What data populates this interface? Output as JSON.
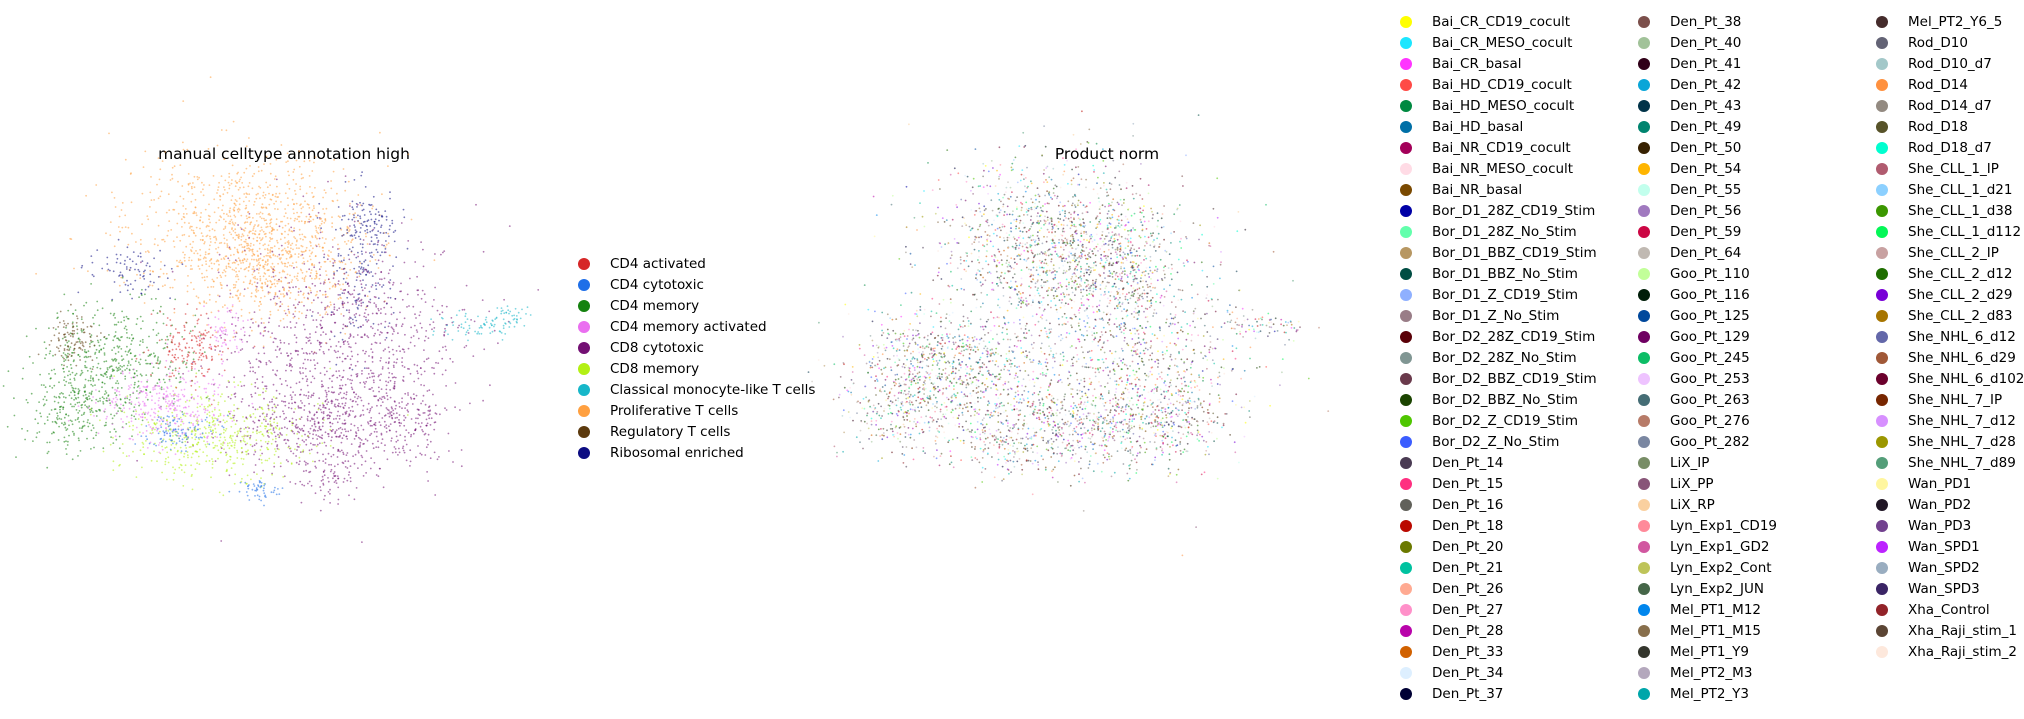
{
  "chart_data": [
    {
      "type": "scatter",
      "title": "manual celltype annotation high",
      "xlabel": "",
      "ylabel": "",
      "grid": false,
      "legend_position": "right",
      "series": [
        {
          "name": "CD4 activated",
          "color": "#d62728"
        },
        {
          "name": "CD4 cytotoxic",
          "color": "#1f6fe8"
        },
        {
          "name": "CD4 memory",
          "color": "#15820f"
        },
        {
          "name": "CD4 memory activated",
          "color": "#ea6ff0"
        },
        {
          "name": "CD8 cytotoxic",
          "color": "#730f73"
        },
        {
          "name": "CD8 memory",
          "color": "#b3f014"
        },
        {
          "name": "Classical monocyte-like T cells",
          "color": "#17b7c9"
        },
        {
          "name": "Proliferative T cells",
          "color": "#ffa040"
        },
        {
          "name": "Regulatory T cells",
          "color": "#5c3a0e"
        },
        {
          "name": "Ribosomal enriched",
          "color": "#0c0c82"
        }
      ]
    },
    {
      "type": "scatter",
      "title": "Product norm",
      "xlabel": "",
      "ylabel": "",
      "grid": false,
      "legend_position": "right",
      "series": [
        {
          "name": "Bai_CR_CD19_cocult",
          "color": "#ffff00"
        },
        {
          "name": "Bai_CR_MESO_cocult",
          "color": "#1ce6ff"
        },
        {
          "name": "Bai_CR_basal",
          "color": "#ff34ff"
        },
        {
          "name": "Bai_HD_CD19_cocult",
          "color": "#ff4a46"
        },
        {
          "name": "Bai_HD_MESO_cocult",
          "color": "#008941"
        },
        {
          "name": "Bai_HD_basal",
          "color": "#006fa6"
        },
        {
          "name": "Bai_NR_CD19_cocult",
          "color": "#a30059"
        },
        {
          "name": "Bai_NR_MESO_cocult",
          "color": "#ffdbe5"
        },
        {
          "name": "Bai_NR_basal",
          "color": "#7a4900"
        },
        {
          "name": "Bor_D1_28Z_CD19_Stim",
          "color": "#0000a6"
        },
        {
          "name": "Bor_D1_28Z_No_Stim",
          "color": "#63ffac"
        },
        {
          "name": "Bor_D1_BBZ_CD19_Stim",
          "color": "#b79762"
        },
        {
          "name": "Bor_D1_BBZ_No_Stim",
          "color": "#004d43"
        },
        {
          "name": "Bor_D1_Z_CD19_Stim",
          "color": "#8fb0ff"
        },
        {
          "name": "Bor_D1_Z_No_Stim",
          "color": "#997d87"
        },
        {
          "name": "Bor_D2_28Z_CD19_Stim",
          "color": "#5a0007"
        },
        {
          "name": "Bor_D2_28Z_No_Stim",
          "color": "#809693"
        },
        {
          "name": "Bor_D2_BBZ_CD19_Stim",
          "color": "#6a3a4c"
        },
        {
          "name": "Bor_D2_BBZ_No_Stim",
          "color": "#1b4400"
        },
        {
          "name": "Bor_D2_Z_CD19_Stim",
          "color": "#4fc601"
        },
        {
          "name": "Bor_D2_Z_No_Stim",
          "color": "#3b5dff"
        },
        {
          "name": "Den_Pt_14",
          "color": "#4a3b53"
        },
        {
          "name": "Den_Pt_15",
          "color": "#ff2f80"
        },
        {
          "name": "Den_Pt_16",
          "color": "#61615a"
        },
        {
          "name": "Den_Pt_18",
          "color": "#ba0900"
        },
        {
          "name": "Den_Pt_20",
          "color": "#6b7900"
        },
        {
          "name": "Den_Pt_21",
          "color": "#00c2a0"
        },
        {
          "name": "Den_Pt_26",
          "color": "#ffaa92"
        },
        {
          "name": "Den_Pt_27",
          "color": "#ff90c9"
        },
        {
          "name": "Den_Pt_28",
          "color": "#b903aa"
        },
        {
          "name": "Den_Pt_33",
          "color": "#d16100"
        },
        {
          "name": "Den_Pt_34",
          "color": "#ddefff"
        },
        {
          "name": "Den_Pt_37",
          "color": "#000035"
        },
        {
          "name": "Den_Pt_38",
          "color": "#7b4f4b"
        },
        {
          "name": "Den_Pt_40",
          "color": "#a1c299"
        },
        {
          "name": "Den_Pt_41",
          "color": "#300018"
        },
        {
          "name": "Den_Pt_42",
          "color": "#0aa6d8"
        },
        {
          "name": "Den_Pt_43",
          "color": "#013349"
        },
        {
          "name": "Den_Pt_49",
          "color": "#00846f"
        },
        {
          "name": "Den_Pt_50",
          "color": "#372101"
        },
        {
          "name": "Den_Pt_54",
          "color": "#ffb500"
        },
        {
          "name": "Den_Pt_55",
          "color": "#c2ffed"
        },
        {
          "name": "Den_Pt_56",
          "color": "#a079bf"
        },
        {
          "name": "Den_Pt_59",
          "color": "#cc0744"
        },
        {
          "name": "Den_Pt_64",
          "color": "#c0b9b2"
        },
        {
          "name": "Goo_Pt_110",
          "color": "#c2ff99"
        },
        {
          "name": "Goo_Pt_116",
          "color": "#001e09"
        },
        {
          "name": "Goo_Pt_125",
          "color": "#00489c"
        },
        {
          "name": "Goo_Pt_129",
          "color": "#6f0062"
        },
        {
          "name": "Goo_Pt_245",
          "color": "#0cbd66"
        },
        {
          "name": "Goo_Pt_253",
          "color": "#eec3ff"
        },
        {
          "name": "Goo_Pt_263",
          "color": "#456d75"
        },
        {
          "name": "Goo_Pt_276",
          "color": "#b77b68"
        },
        {
          "name": "Goo_Pt_282",
          "color": "#7a87a1"
        },
        {
          "name": "LiX_IP",
          "color": "#788d66"
        },
        {
          "name": "LiX_PP",
          "color": "#885578"
        },
        {
          "name": "LiX_RP",
          "color": "#fad09f"
        },
        {
          "name": "Lyn_Exp1_CD19",
          "color": "#ff8a9a"
        },
        {
          "name": "Lyn_Exp1_GD2",
          "color": "#d157a0"
        },
        {
          "name": "Lyn_Exp2_Cont",
          "color": "#bec459"
        },
        {
          "name": "Lyn_Exp2_JUN",
          "color": "#456648"
        },
        {
          "name": "Mel_PT1_M12",
          "color": "#0086ed"
        },
        {
          "name": "Mel_PT1_M15",
          "color": "#886f4c"
        },
        {
          "name": "Mel_PT1_Y9",
          "color": "#34362d"
        },
        {
          "name": "Mel_PT2_M3",
          "color": "#b4a8bd"
        },
        {
          "name": "Mel_PT2_Y3",
          "color": "#00a6aa"
        },
        {
          "name": "Mel_PT2_Y6_5",
          "color": "#452c2c"
        },
        {
          "name": "Rod_D10",
          "color": "#636375"
        },
        {
          "name": "Rod_D10_d7",
          "color": "#a3c8c9"
        },
        {
          "name": "Rod_D14",
          "color": "#ff913f"
        },
        {
          "name": "Rod_D14_d7",
          "color": "#938a81"
        },
        {
          "name": "Rod_D18",
          "color": "#575329"
        },
        {
          "name": "Rod_D18_d7",
          "color": "#00fecf"
        },
        {
          "name": "She_CLL_1_IP",
          "color": "#b05b6f"
        },
        {
          "name": "She_CLL_1_d21",
          "color": "#8cd0ff"
        },
        {
          "name": "She_CLL_1_d38",
          "color": "#3b9700"
        },
        {
          "name": "She_CLL_1_d112",
          "color": "#04f757"
        },
        {
          "name": "She_CLL_2_IP",
          "color": "#c8a1a1"
        },
        {
          "name": "She_CLL_2_d12",
          "color": "#1e6e00"
        },
        {
          "name": "She_CLL_2_d29",
          "color": "#7900d7"
        },
        {
          "name": "She_CLL_2_d83",
          "color": "#a77500"
        },
        {
          "name": "She_NHL_6_d12",
          "color": "#6367a9"
        },
        {
          "name": "She_NHL_6_d29",
          "color": "#a05837"
        },
        {
          "name": "She_NHL_6_d102",
          "color": "#6b002c"
        },
        {
          "name": "She_NHL_7_IP",
          "color": "#772600"
        },
        {
          "name": "She_NHL_7_d12",
          "color": "#d790ff"
        },
        {
          "name": "She_NHL_7_d28",
          "color": "#9b9700"
        },
        {
          "name": "She_NHL_7_d89",
          "color": "#549e79"
        },
        {
          "name": "Wan_PD1",
          "color": "#fff69f"
        },
        {
          "name": "Wan_PD2",
          "color": "#201625"
        },
        {
          "name": "Wan_PD3",
          "color": "#72418f"
        },
        {
          "name": "Wan_SPD1",
          "color": "#bc23ff"
        },
        {
          "name": "Wan_SPD2",
          "color": "#99adc0"
        },
        {
          "name": "Wan_SPD3",
          "color": "#3a2465"
        },
        {
          "name": "Xha_Control",
          "color": "#922329"
        },
        {
          "name": "Xha_Raji_stim_1",
          "color": "#5b4534"
        },
        {
          "name": "Xha_Raji_stim_2",
          "color": "#fde8dc"
        }
      ]
    }
  ]
}
